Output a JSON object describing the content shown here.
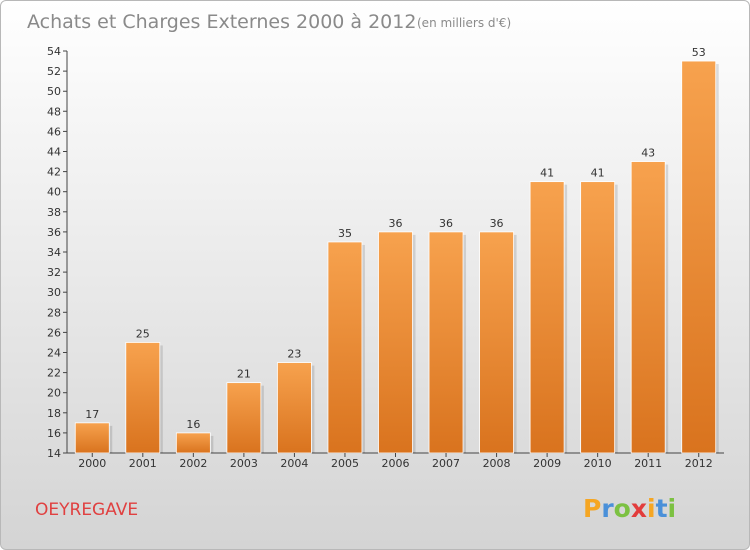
{
  "chart_data": {
    "type": "bar",
    "title": "Achats et Charges Externes 2000 à 2012",
    "subtitle": "(en milliers d'€)",
    "categories": [
      "2000",
      "2001",
      "2002",
      "2003",
      "2004",
      "2005",
      "2006",
      "2007",
      "2008",
      "2009",
      "2010",
      "2011",
      "2012"
    ],
    "values": [
      17,
      25,
      16,
      21,
      23,
      35,
      36,
      36,
      36,
      41,
      41,
      43,
      53
    ],
    "ylim": [
      14,
      54
    ],
    "yticks": [
      14,
      16,
      18,
      20,
      22,
      24,
      26,
      28,
      30,
      32,
      34,
      36,
      38,
      40,
      42,
      44,
      46,
      48,
      50,
      52,
      54
    ],
    "grid": false,
    "legend": "none",
    "bar_color_top": "#f7a24e",
    "bar_color_bottom": "#d9731e"
  },
  "commune": "OEYREGAVE",
  "commune_color": "#e04040",
  "logo": {
    "letters": [
      "P",
      "r",
      "o",
      "x",
      "i",
      "t",
      "i"
    ],
    "colors": [
      "#f5a623",
      "#4a90d9",
      "#7cc142",
      "#e23c3c",
      "#f5a623",
      "#4a90d9",
      "#7cc142"
    ]
  }
}
